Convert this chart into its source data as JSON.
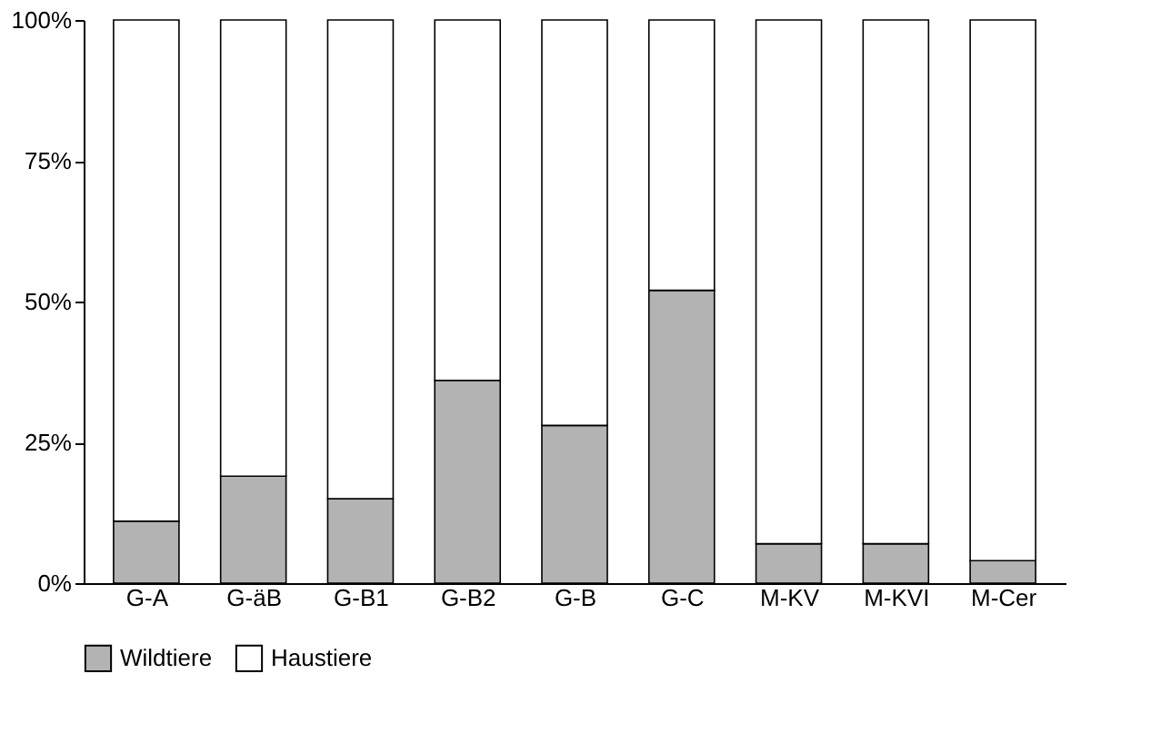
{
  "chart_data": {
    "type": "bar",
    "stacked": true,
    "categories": [
      "G-A",
      "G-äB",
      "G-B1",
      "G-B2",
      "G-B",
      "G-C",
      "M-KV",
      "M-KVI",
      "M-Cer"
    ],
    "series": [
      {
        "name": "Wildtiere",
        "color": "#b3b3b3",
        "values": [
          11,
          19,
          15,
          36,
          28,
          52,
          7,
          7,
          4
        ]
      },
      {
        "name": "Haustiere",
        "color": "#ffffff",
        "values": [
          89,
          81,
          85,
          64,
          72,
          48,
          93,
          93,
          96
        ]
      }
    ],
    "ylim": [
      0,
      100
    ],
    "yticks": [
      {
        "value": 0,
        "label": "0%"
      },
      {
        "value": 25,
        "label": "25%"
      },
      {
        "value": 50,
        "label": "50%"
      },
      {
        "value": 75,
        "label": "75%"
      },
      {
        "value": 100,
        "label": "100%"
      }
    ],
    "grid": false,
    "legend": "bottom"
  }
}
